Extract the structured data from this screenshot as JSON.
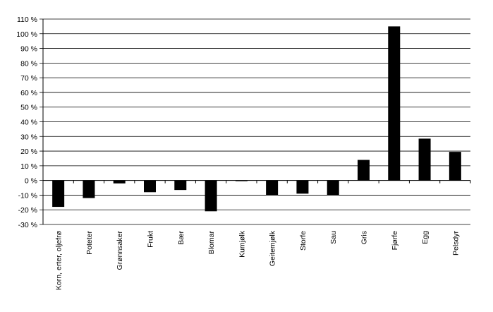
{
  "chart_data": {
    "type": "bar",
    "categories": [
      "Korn, erter, oljefrø",
      "Poteter",
      "Grønnsaker",
      "Frukt",
      "Bær",
      "Blomar",
      "Kumjølk",
      "Geitemjølk",
      "Storfe",
      "Sau",
      "Gris",
      "Fjørfe",
      "Egg",
      "Pelsdyr"
    ],
    "series": [
      {
        "values": [
          -18,
          -12,
          -2,
          -8,
          -6.5,
          -21,
          -0.5,
          -10,
          -9,
          -10,
          14,
          105,
          28.5,
          19.5
        ]
      }
    ],
    "ylim": [
      -30,
      110
    ],
    "yticks": [
      -30,
      -20,
      -10,
      0,
      10,
      20,
      30,
      40,
      50,
      60,
      70,
      80,
      90,
      100,
      110
    ],
    "ytick_labels": [
      "-30 %",
      "-20 %",
      "-10 %",
      "0 %",
      "10 %",
      "20 %",
      "30 %",
      "40 %",
      "50 %",
      "60 %",
      "70 %",
      "80 %",
      "90 %",
      "100 %",
      "110 %"
    ],
    "grid": true,
    "bar_color": "#000000",
    "title": "",
    "xlabel": "",
    "ylabel": ""
  }
}
